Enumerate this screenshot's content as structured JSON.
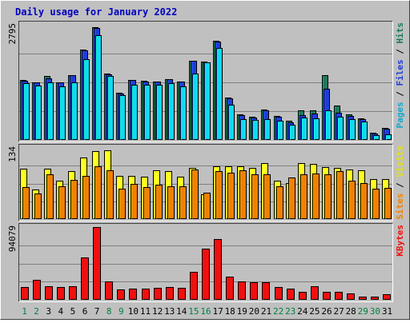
{
  "chart_data": {
    "type": "bar",
    "title": "Daily usage for January 2022",
    "categories": [
      "1",
      "2",
      "3",
      "4",
      "5",
      "6",
      "7",
      "8",
      "9",
      "10",
      "11",
      "12",
      "13",
      "14",
      "15",
      "16",
      "17",
      "18",
      "19",
      "20",
      "21",
      "22",
      "23",
      "24",
      "25",
      "26",
      "27",
      "28",
      "29",
      "30",
      "31"
    ],
    "weekend_days": [
      "1",
      "2",
      "8",
      "9",
      "15",
      "16",
      "22",
      "23",
      "29",
      "30"
    ],
    "colors": {
      "title": "#0000c0",
      "background": "#c0c0c0",
      "panel": "#c0c0c0",
      "grid": "#808080",
      "weekday_label": "#000000",
      "weekend_label": "#008040",
      "hits": "#1a7a5e",
      "files": "#1e3ed8",
      "pages": "#10d8f0",
      "visits": "#ffff20",
      "sites": "#f08000",
      "kbytes": "#f01010"
    },
    "panels": [
      {
        "ymax_label": "2795",
        "ymax": 2795,
        "legend": [
          {
            "text": "Pages",
            "color": "#10a8d0"
          },
          {
            "text": " / ",
            "color": "#000000"
          },
          {
            "text": "Files",
            "color": "#1e3ed8"
          },
          {
            "text": " / ",
            "color": "#000000"
          },
          {
            "text": "Hits",
            "color": "#1a7a5e"
          }
        ],
        "series": [
          {
            "name": "Hits",
            "color": "#1a7a5e",
            "values": [
              1450,
              1400,
              1550,
              1400,
              1580,
              2190,
              2730,
              1610,
              1140,
              1450,
              1430,
              1420,
              1480,
              1420,
              1930,
              1900,
              2400,
              1030,
              620,
              560,
              730,
              590,
              460,
              720,
              720,
              1570,
              830,
              630,
              530,
              180,
              290
            ]
          },
          {
            "name": "Files",
            "color": "#1e3ed8",
            "values": [
              1440,
              1390,
              1490,
              1400,
              1570,
              2170,
              2720,
              1600,
              1130,
              1450,
              1420,
              1410,
              1470,
              1410,
              1920,
              1890,
              2380,
              1010,
              600,
              550,
              710,
              570,
              420,
              600,
              640,
              1250,
              660,
              580,
              500,
              160,
              270
            ]
          },
          {
            "name": "Pages",
            "color": "#10d8f0",
            "values": [
              1370,
              1320,
              1400,
              1300,
              1390,
              1970,
              2550,
              1560,
              1090,
              1330,
              1330,
              1330,
              1380,
              1300,
              1610,
              1890,
              2240,
              850,
              500,
              480,
              510,
              470,
              360,
              550,
              530,
              710,
              570,
              510,
              440,
              120,
              140
            ]
          }
        ]
      },
      {
        "ymax_label": "134",
        "ymax": 134,
        "legend": [
          {
            "text": "Sites",
            "color": "#f08000"
          },
          {
            "text": " / ",
            "color": "#000000"
          },
          {
            "text": "Visits",
            "color": "#e0e020"
          }
        ],
        "series": [
          {
            "name": "Visits",
            "color": "#ffff20",
            "values": [
              95,
              55,
              95,
              72,
              90,
              116,
              128,
              130,
              82,
              82,
              80,
              92,
              90,
              80,
              96,
              47,
              100,
              100,
              100,
              96,
              105,
              72,
              68,
              106,
              104,
              98,
              96,
              94,
              92,
              75,
              76
            ]
          },
          {
            "name": "Sites",
            "color": "#f08000",
            "values": [
              60,
              48,
              85,
              62,
              74,
              82,
              100,
              92,
              57,
              66,
              60,
              64,
              62,
              61,
              93,
              50,
              90,
              88,
              92,
              84,
              84,
              62,
              78,
              84,
              86,
              84,
              90,
              72,
              68,
              57,
              58
            ]
          }
        ]
      },
      {
        "ymax_label": "94079",
        "ymax": 94079,
        "legend": [
          {
            "text": "KBytes",
            "color": "#f01010"
          }
        ],
        "series": [
          {
            "name": "KBytes",
            "color": "#f01010",
            "values": [
              17000,
              26000,
              17500,
              16500,
              18000,
              55000,
              94079,
              24000,
              13500,
              14500,
              14000,
              16000,
              16500,
              15500,
              36000,
              66000,
              79000,
              30000,
              24000,
              22500,
              22500,
              17000,
              14000,
              10500,
              17500,
              10500,
              10500,
              8500,
              4500,
              4500,
              7000
            ]
          }
        ]
      }
    ]
  }
}
